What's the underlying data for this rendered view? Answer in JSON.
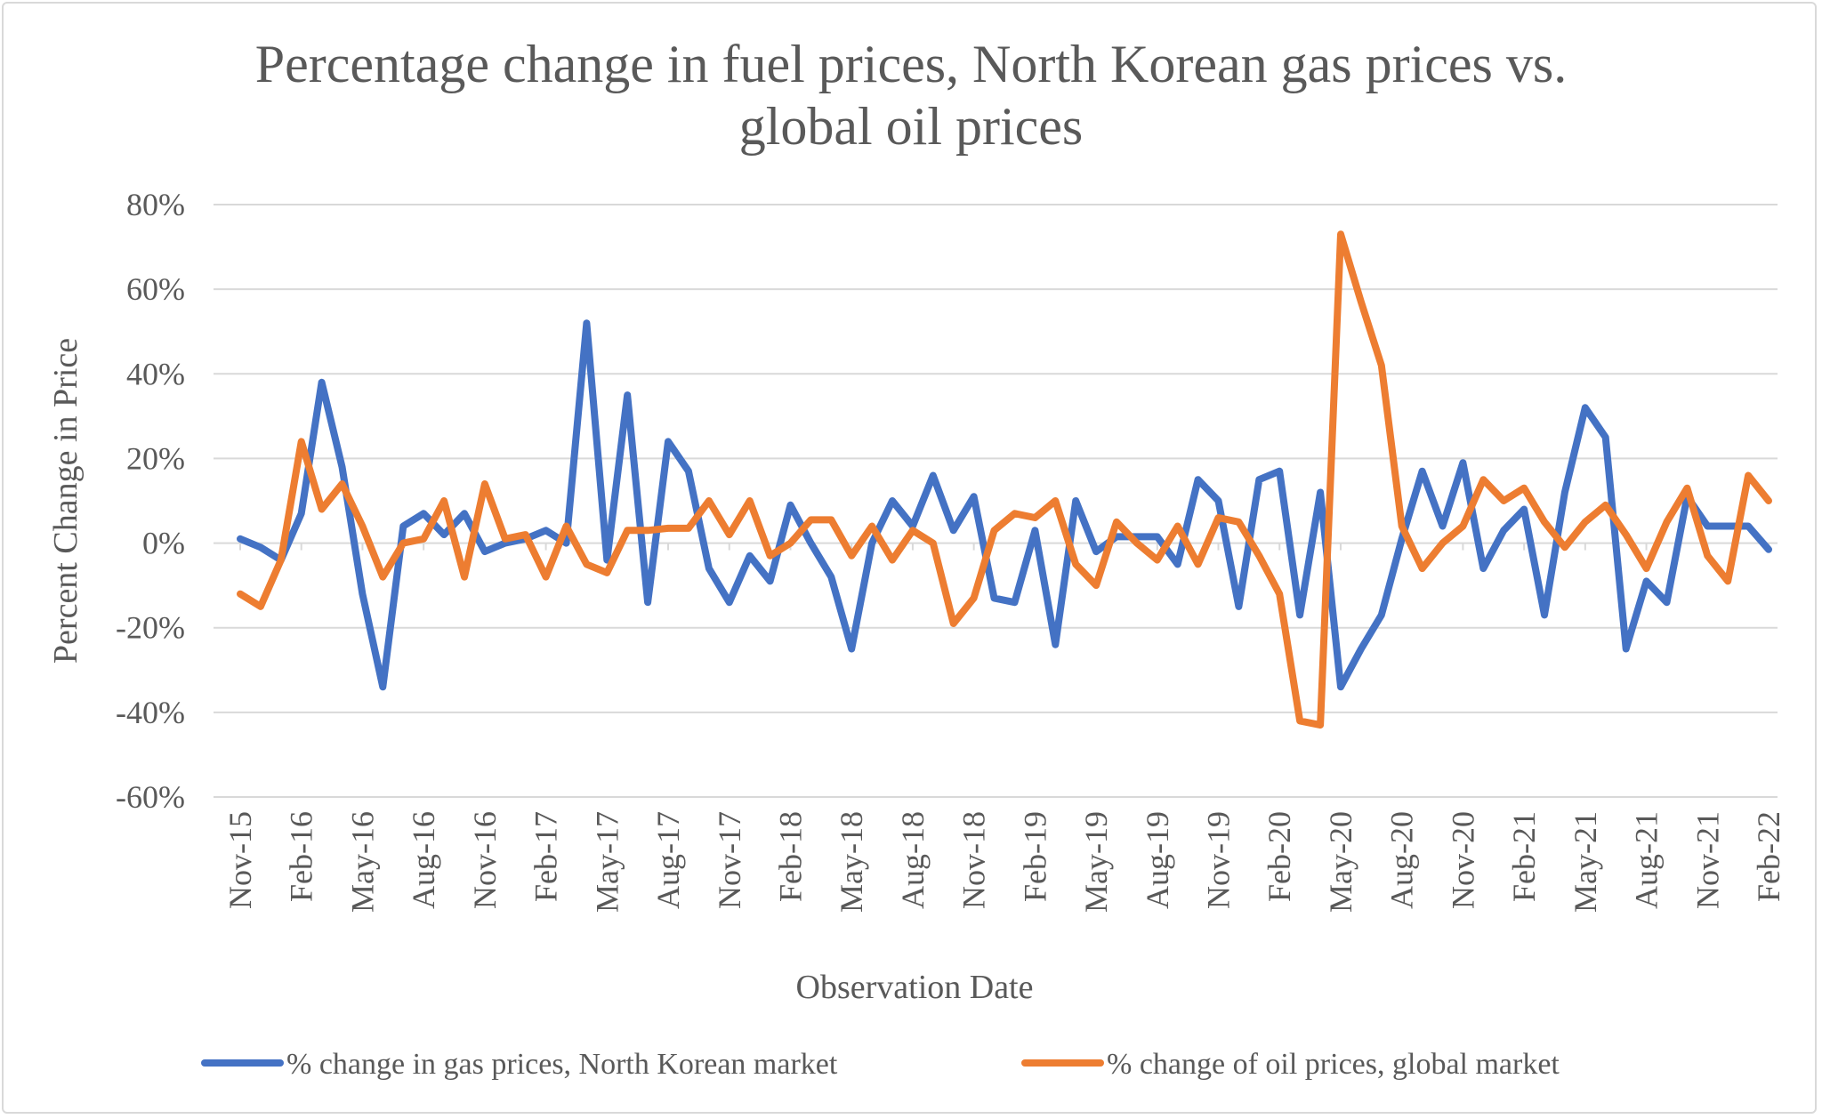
{
  "chart_data": {
    "type": "line",
    "title": "Percentage change in fuel prices, North Korean gas prices vs. global oil prices",
    "title_lines": [
      "Percentage change in fuel prices, North Korean gas prices vs.",
      "global oil prices"
    ],
    "xlabel": "Observation Date",
    "ylabel": "Percent Change in Price",
    "ylim": [
      -0.6,
      0.8
    ],
    "yticks": [
      0.8,
      0.6,
      0.4,
      0.2,
      0,
      -0.2,
      -0.4,
      -0.6
    ],
    "ytick_labels": [
      "80%",
      "60%",
      "40%",
      "20%",
      "0%",
      "-20%",
      "-40%",
      "-60%"
    ],
    "x_start": "Nov-15",
    "x_end": "Feb-22",
    "x_frequency": "monthly",
    "xtick_labels": [
      "Nov-15",
      "Feb-16",
      "May-16",
      "Aug-16",
      "Nov-16",
      "Feb-17",
      "May-17",
      "Aug-17",
      "Nov-17",
      "Feb-18",
      "May-18",
      "Aug-18",
      "Nov-18",
      "Feb-19",
      "May-19",
      "Aug-19",
      "Nov-19",
      "Feb-20",
      "May-20",
      "Aug-20",
      "Nov-20",
      "Feb-21",
      "May-21",
      "Aug-21",
      "Nov-21",
      "Feb-22"
    ],
    "grid": "horizontal",
    "legend_position": "bottom",
    "series": [
      {
        "name": "% change in gas prices, North Korean market",
        "color": "#4472c4",
        "values": [
          0.01,
          -0.01,
          -0.04,
          0.07,
          0.38,
          0.18,
          -0.12,
          -0.34,
          0.04,
          0.07,
          0.02,
          0.07,
          -0.02,
          0,
          0.01,
          0.03,
          0,
          0.52,
          -0.04,
          0.35,
          -0.14,
          0.24,
          0.17,
          -0.06,
          -0.14,
          -0.03,
          -0.09,
          0.09,
          0,
          -0.08,
          -0.25,
          0,
          0.1,
          0.04,
          0.16,
          0.03,
          0.11,
          -0.13,
          -0.14,
          0.03,
          -0.24,
          0.1,
          -0.02,
          0.015,
          0.015,
          0.015,
          -0.05,
          0.15,
          0.1,
          -0.15,
          0.15,
          0.17,
          -0.17,
          0.12,
          -0.34,
          -0.25,
          -0.17,
          0.01,
          0.17,
          0.04,
          0.19,
          -0.06,
          0.03,
          0.08,
          -0.17,
          0.12,
          0.32,
          0.25,
          -0.25,
          -0.09,
          -0.14,
          0.11,
          0.04,
          0.04,
          0.04,
          -0.015
        ]
      },
      {
        "name": "% change of oil prices, global market",
        "color": "#ed7d31",
        "values": [
          -0.12,
          -0.15,
          -0.04,
          0.24,
          0.08,
          0.14,
          0.04,
          -0.08,
          0,
          0.01,
          0.1,
          -0.08,
          0.14,
          0.01,
          0.02,
          -0.08,
          0.04,
          -0.05,
          -0.07,
          0.03,
          0.03,
          0.035,
          0.035,
          0.1,
          0.02,
          0.1,
          -0.03,
          0,
          0.055,
          0.055,
          -0.03,
          0.04,
          -0.04,
          0.03,
          0,
          -0.19,
          -0.13,
          0.03,
          0.07,
          0.06,
          0.1,
          -0.05,
          -0.1,
          0.05,
          0,
          -0.04,
          0.04,
          -0.05,
          0.06,
          0.05,
          -0.03,
          -0.12,
          -0.42,
          -0.43,
          0.73,
          0.57,
          0.42,
          0.04,
          -0.06,
          0,
          0.04,
          0.15,
          0.1,
          0.13,
          0.05,
          -0.01,
          0.05,
          0.09,
          0.02,
          -0.06,
          0.05,
          0.13,
          -0.03,
          -0.09,
          0.16,
          0.1
        ]
      }
    ]
  }
}
